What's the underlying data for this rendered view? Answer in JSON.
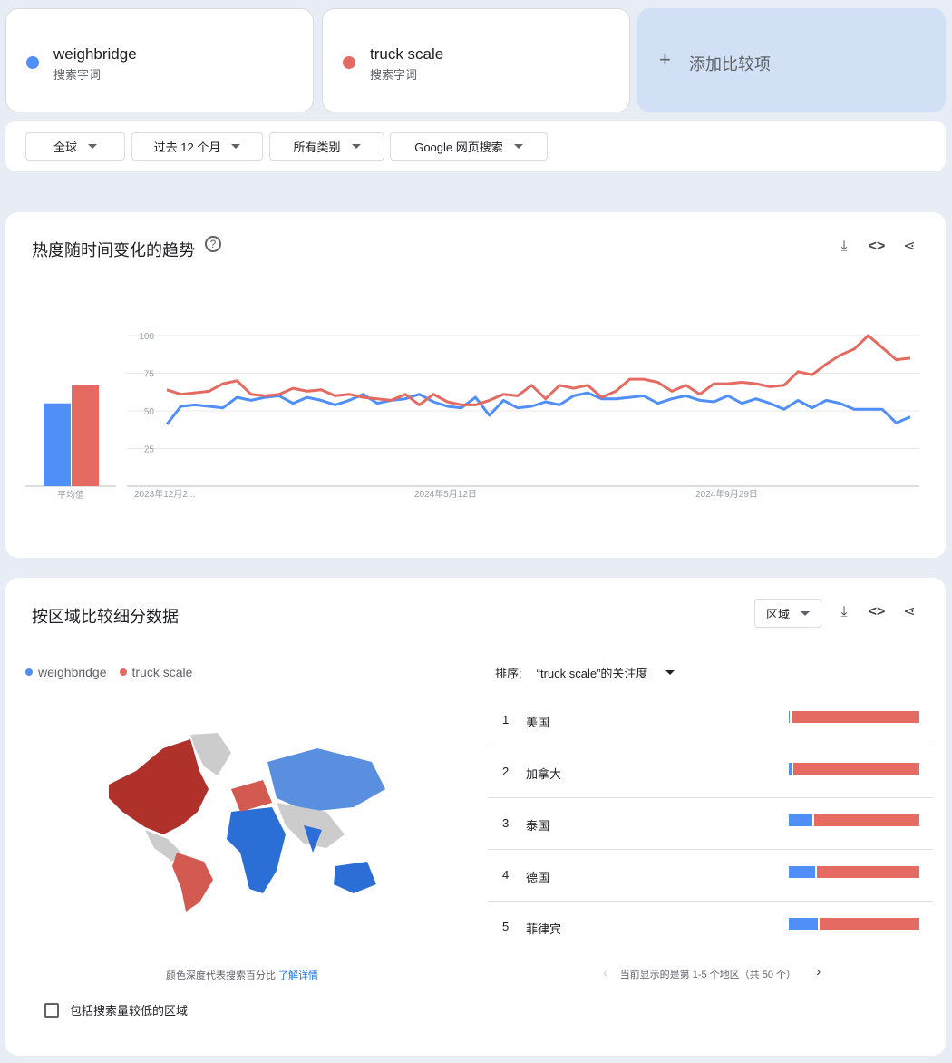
{
  "terms": [
    {
      "name": "weighbridge",
      "sub": "搜索字词",
      "color": "#4f8ff7"
    },
    {
      "name": "truck scale",
      "sub": "搜索字词",
      "color": "#e56a61"
    }
  ],
  "add_label": "添加比较项",
  "filters": [
    "全球",
    "过去 12 个月",
    "所有类别",
    "Google 网页搜索"
  ],
  "trend": {
    "title": "热度随时间变化的趋势",
    "avg_label": "平均值"
  },
  "chart_data": {
    "type": "line",
    "title": "",
    "yticks": [
      25,
      50,
      75,
      100
    ],
    "ylim": [
      0,
      100
    ],
    "grid": true,
    "xtick_labels": [
      "2023年12月2...",
      "2024年5月12日",
      "2024年9月29日"
    ],
    "averages": [
      55,
      67
    ],
    "series": [
      {
        "name": "weighbridge",
        "color": "#4f8ff7",
        "values": [
          41,
          53,
          54,
          53,
          52,
          59,
          57,
          59,
          60,
          55,
          59,
          57,
          54,
          57,
          61,
          55,
          57,
          58,
          61,
          56,
          53,
          52,
          59,
          47,
          57,
          52,
          53,
          56,
          54,
          60,
          62,
          58,
          58,
          59,
          60,
          55,
          58,
          60,
          57,
          56,
          60,
          55,
          58,
          55,
          51,
          57,
          52,
          57,
          55,
          51,
          51,
          51,
          42,
          46
        ]
      },
      {
        "name": "truck scale",
        "color": "#e56a61",
        "values": [
          64,
          61,
          62,
          63,
          68,
          70,
          61,
          60,
          61,
          65,
          63,
          64,
          60,
          61,
          59,
          58,
          57,
          61,
          54,
          61,
          56,
          54,
          54,
          57,
          61,
          60,
          67,
          58,
          67,
          65,
          67,
          59,
          63,
          71,
          71,
          69,
          63,
          67,
          61,
          68,
          68,
          69,
          68,
          66,
          67,
          76,
          74,
          81,
          87,
          91,
          100,
          92,
          84,
          85
        ]
      }
    ]
  },
  "region": {
    "title": "按区域比较细分数据",
    "select": "区域",
    "sort_label": "排序:",
    "sort_value": "“truck scale”的关注度",
    "map_note": "颜色深度代表搜索百分比",
    "map_link": "了解详情",
    "checkbox": "包括搜索量较低的区域",
    "pagination": "当前显示的是第 1-5 个地区（共 50 个）",
    "rows": [
      {
        "rank": "1",
        "name": "美国",
        "weighbridge_pct": 1
      },
      {
        "rank": "2",
        "name": "加拿大",
        "weighbridge_pct": 2
      },
      {
        "rank": "3",
        "name": "泰国",
        "weighbridge_pct": 18
      },
      {
        "rank": "4",
        "name": "德国",
        "weighbridge_pct": 20
      },
      {
        "rank": "5",
        "name": "菲律宾",
        "weighbridge_pct": 22
      }
    ]
  }
}
